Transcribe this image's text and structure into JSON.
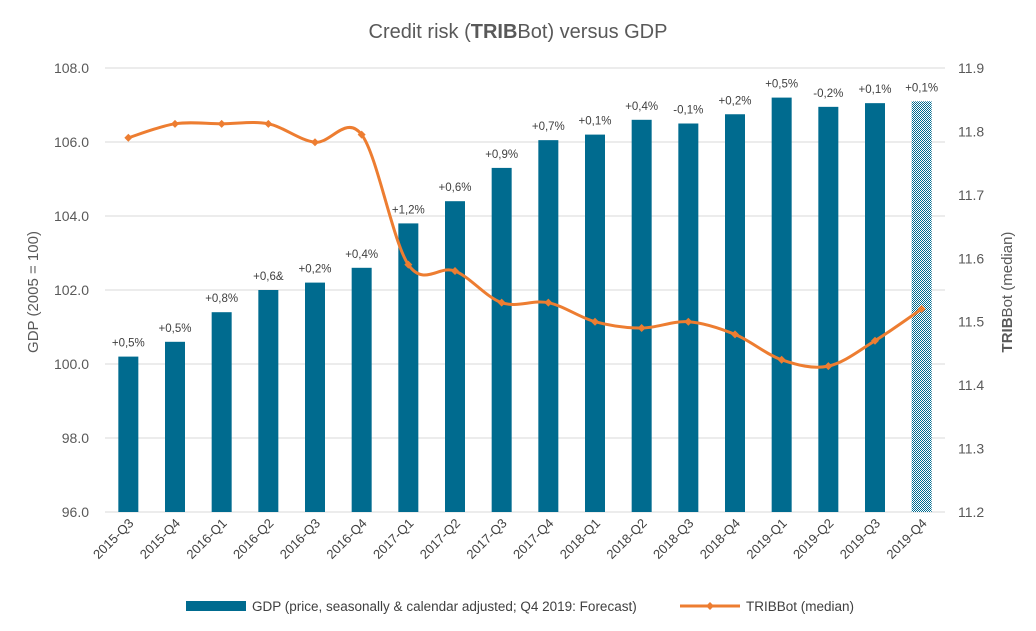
{
  "chart_data": {
    "type": "bar",
    "title_parts": {
      "pre": "Credit risk (",
      "bold": "TRIB",
      "post": "Bot) versus GDP"
    },
    "categories": [
      "2015-Q3",
      "2015-Q4",
      "2016-Q1",
      "2016-Q2",
      "2016-Q3",
      "2016-Q4",
      "2017-Q1",
      "2017-Q2",
      "2017-Q3",
      "2017-Q4",
      "2018-Q1",
      "2018-Q2",
      "2018-Q3",
      "2018-Q4",
      "2019-Q1",
      "2019-Q2",
      "2019-Q3",
      "2019-Q4"
    ],
    "series": [
      {
        "name": "GDP (price, seasonally & calendar adjusted; Q4 2019: Forecast)",
        "type": "bar",
        "axis": "left",
        "color": "#006b8f",
        "forecast_index": 17,
        "values": [
          100.2,
          100.6,
          101.4,
          102.0,
          102.2,
          102.6,
          103.8,
          104.4,
          105.3,
          106.05,
          106.2,
          106.6,
          106.5,
          106.75,
          107.2,
          106.95,
          107.05,
          107.1
        ],
        "labels": [
          "+0,5%",
          "+0,5%",
          "+0,8%",
          "+0,6&",
          "+0,2%",
          "+0,4%",
          "+1,2%",
          "+0,6%",
          "+0,9%",
          "+0,7%",
          "+0,1%",
          "+0,4%",
          "-0,1%",
          "+0,2%",
          "+0,5%",
          "-0,2%",
          "+0,1%",
          "+0,1%"
        ]
      },
      {
        "name": "TRIBBot (median)",
        "type": "line",
        "axis": "right",
        "color": "#ed7d31",
        "values": [
          11.79,
          11.812,
          11.812,
          11.812,
          11.783,
          11.795,
          11.59,
          11.58,
          11.53,
          11.53,
          11.5,
          11.49,
          11.5,
          11.48,
          11.44,
          11.43,
          11.47,
          11.52
        ]
      }
    ],
    "y_left": {
      "label": "GDP (2005 = 100)",
      "min": 96,
      "max": 108,
      "ticks": [
        "96.0",
        "98.0",
        "100.0",
        "102.0",
        "104.0",
        "106.0",
        "108.0"
      ]
    },
    "y_right": {
      "label_parts": {
        "bold": "TRIB",
        "post": "Bot (median)"
      },
      "min": 11.2,
      "max": 11.9,
      "ticks": [
        "11.2",
        "11.3",
        "11.4",
        "11.5",
        "11.6",
        "11.7",
        "11.8",
        "11.9"
      ]
    },
    "grid": true,
    "legend_position": "bottom"
  }
}
